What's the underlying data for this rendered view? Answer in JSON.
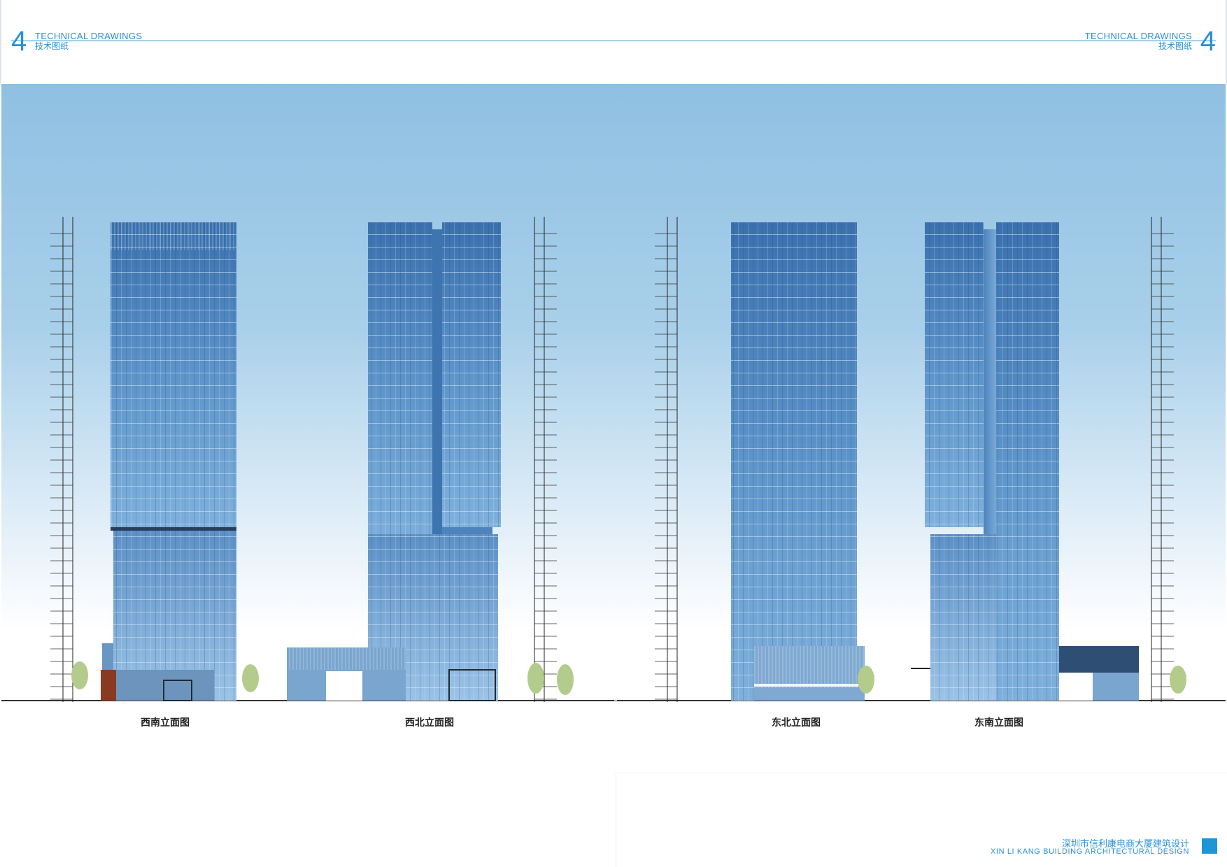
{
  "header": {
    "left": {
      "number": "4",
      "title_en": "TECHNICAL DRAWINGS",
      "title_cn": "技术图纸"
    },
    "right": {
      "number": "4",
      "title_en": "TECHNICAL DRAWINGS",
      "title_cn": "技术图纸"
    }
  },
  "elevations": [
    {
      "caption": "西南立面图"
    },
    {
      "caption": "西北立面图"
    },
    {
      "caption": "东北立面图"
    },
    {
      "caption": "东南立面图"
    }
  ],
  "footer": {
    "title_cn": "深圳市信利康电商大厦建筑设计",
    "title_en": "XIN LI KANG BUILDING ARCHITECTURAL DESIGN"
  },
  "colors": {
    "accent": "#2a8fd6",
    "sky_top": "#8fc0e2",
    "sky_bottom": "#ffffff",
    "glass_dark": "#3f79b6",
    "glass_light": "#9cc3e6"
  }
}
